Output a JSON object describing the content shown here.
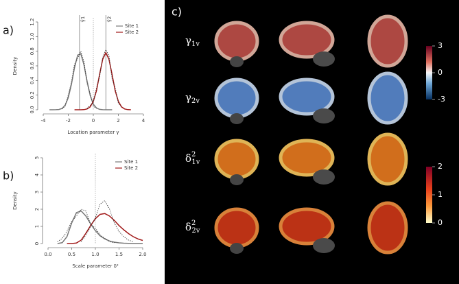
{
  "chart_data": [
    {
      "type": "line",
      "panel_label": "a)",
      "xlabel": "Location parameter γ",
      "ylabel": "Density",
      "xlim": [
        -4,
        4
      ],
      "xticks": [
        -4,
        -2,
        0,
        2,
        4
      ],
      "ylim": [
        0,
        1.2
      ],
      "yticks": [
        {
          "value": 0,
          "label": "0.0"
        },
        0.2,
        0.4,
        0.6,
        0.8,
        {
          "value": 1,
          "label": "1.0"
        },
        1.2
      ],
      "x": [
        -3.5,
        -3.25,
        -3,
        -2.75,
        -2.5,
        -2.25,
        -2,
        -1.75,
        -1.5,
        -1.25,
        -1,
        -0.75,
        -0.5,
        -0.25,
        0,
        0.25,
        0.5,
        0.75,
        1,
        1.25,
        1.5,
        1.75,
        2,
        2.25,
        2.5,
        2.75,
        3
      ],
      "series": [
        {
          "name": "Site 1",
          "color": "#777777",
          "values": [
            0,
            0,
            0.001,
            0.004,
            0.018,
            0.062,
            0.165,
            0.347,
            0.574,
            0.747,
            0.765,
            0.617,
            0.392,
            0.196,
            0.076,
            0.024,
            0.006,
            0.001,
            0,
            0,
            0,
            null,
            null,
            null,
            null,
            null,
            null
          ]
        },
        {
          "name": "Site 2",
          "color": "#a01818",
          "values": [
            null,
            null,
            null,
            null,
            null,
            null,
            null,
            null,
            0,
            0,
            0,
            0.002,
            0.011,
            0.039,
            0.115,
            0.26,
            0.48,
            0.69,
            0.78,
            0.69,
            0.48,
            0.26,
            0.115,
            0.039,
            0.011,
            0.002,
            0
          ]
        },
        {
          "color": "#333333",
          "dash": true,
          "values": [
            null,
            null,
            null,
            null,
            0.01,
            0.05,
            0.2,
            0.38,
            0.62,
            0.7,
            0.8,
            0.66,
            0.36,
            0.22,
            0.05,
            0.02,
            null,
            null,
            null,
            null,
            null,
            null,
            null,
            null,
            null,
            null,
            null
          ]
        },
        {
          "color": "#333333",
          "dash": true,
          "values": [
            null,
            null,
            null,
            null,
            null,
            null,
            null,
            null,
            null,
            null,
            null,
            null,
            0.02,
            0.06,
            0.1,
            0.3,
            0.45,
            0.72,
            0.82,
            0.74,
            0.42,
            0.3,
            0.09,
            0.04,
            null,
            null,
            null
          ]
        }
      ],
      "vlines": [
        {
          "x": -1.1,
          "label": "γ̂1"
        },
        {
          "x": 1,
          "label": "γ̂2"
        }
      ],
      "ref_line": 0
    },
    {
      "type": "line",
      "panel_label": "b)",
      "xlabel": "Scale parameter δ²",
      "ylabel": "Density",
      "xlim": [
        0,
        2
      ],
      "xticks": [
        {
          "value": 0,
          "label": "0.0"
        },
        0.5,
        {
          "value": 1,
          "label": "1.0"
        },
        1.5,
        {
          "value": 2,
          "label": "2.0"
        }
      ],
      "ylim": [
        0,
        5
      ],
      "yticks": [
        0,
        1,
        2,
        3,
        4,
        5
      ],
      "x": [
        0.2,
        0.3,
        0.4,
        0.5,
        0.6,
        0.7,
        0.8,
        0.9,
        1,
        1.1,
        1.2,
        1.3,
        1.4,
        1.5,
        1.6,
        1.7,
        1.8,
        1.9,
        2
      ],
      "series": [
        {
          "name": "Site 1",
          "color": "#777777",
          "values": [
            0,
            0.05,
            0.4,
            1.2,
            1.8,
            1.9,
            1.6,
            1.15,
            0.75,
            0.45,
            0.27,
            0.15,
            0.08,
            0.04,
            0.02,
            0.01,
            0,
            0,
            0
          ]
        },
        {
          "name": "Site 2",
          "color": "#a01818",
          "values": [
            null,
            null,
            0,
            0,
            0.03,
            0.2,
            0.6,
            1.05,
            1.45,
            1.7,
            1.75,
            1.6,
            1.35,
            1.05,
            0.8,
            0.58,
            0.4,
            0.27,
            0.18
          ]
        },
        {
          "color": "#333333",
          "dash": true,
          "values": [
            0.1,
            0.3,
            0.7,
            1.3,
            1.6,
            2.0,
            1.9,
            1.1,
            0.9,
            0.5,
            0.3,
            0.1,
            0.05,
            null,
            null,
            null,
            null,
            null,
            null
          ]
        },
        {
          "color": "#333333",
          "dash": true,
          "values": [
            null,
            null,
            null,
            null,
            null,
            0.1,
            0.5,
            1.0,
            1.5,
            2.3,
            2.5,
            2.0,
            1.2,
            0.7,
            0.4,
            0.2,
            0.1,
            null,
            null
          ]
        }
      ],
      "ref_line": 1
    }
  ],
  "panel_c": {
    "label": "c)",
    "rows": [
      {
        "symbol": "γ",
        "sub": "1v"
      },
      {
        "symbol": "γ",
        "sub": "2v"
      },
      {
        "symbol": "δ",
        "sup": "2",
        "sub": "1v"
      },
      {
        "symbol": "δ",
        "sup": "2",
        "sub": "2v"
      }
    ],
    "colorbars": [
      {
        "ticks": [
          3,
          0,
          -3
        ],
        "lim": [
          -3,
          3
        ]
      },
      {
        "ticks": [
          2,
          1,
          0
        ],
        "lim": [
          0,
          2
        ]
      }
    ]
  }
}
